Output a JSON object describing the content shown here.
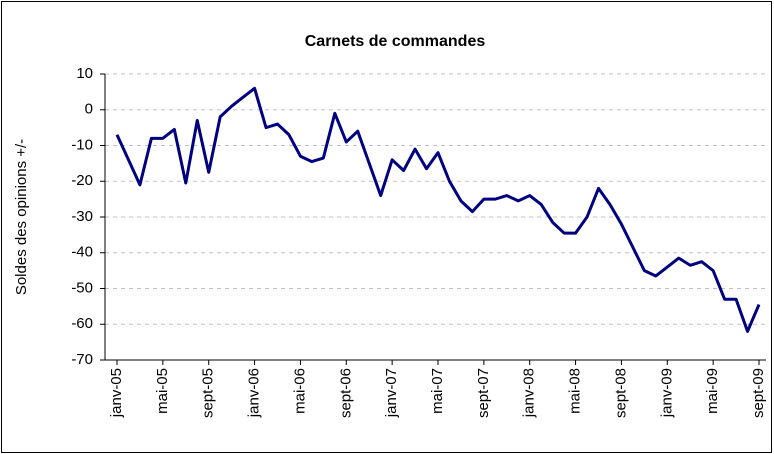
{
  "chart_data": {
    "type": "line",
    "title": "Carnets de commandes",
    "y_label": "Soldes des opinions +/-",
    "categories": [
      "janv-05",
      null,
      null,
      null,
      "mai-05",
      null,
      null,
      null,
      "sept-05",
      null,
      null,
      null,
      "janv-06",
      null,
      null,
      null,
      "mai-06",
      null,
      null,
      null,
      "sept-06",
      null,
      null,
      null,
      "janv-07",
      null,
      null,
      null,
      "mai-07",
      null,
      null,
      null,
      "sept-07",
      null,
      null,
      null,
      "janv-08",
      null,
      null,
      null,
      "mai-08",
      null,
      null,
      null,
      "sept-08",
      null,
      null,
      null,
      "janv-09",
      null,
      null,
      null,
      "mai-09",
      null,
      null,
      null,
      "sept-09"
    ],
    "series": [
      {
        "name": "Carnets de commandes",
        "color": "#000080",
        "values": [
          -7,
          -14,
          -21,
          -8,
          -8,
          -5.5,
          -20.5,
          -3,
          -17.5,
          -2,
          1,
          3.5,
          6,
          -5,
          -4,
          -7,
          -13,
          -14.5,
          -13.5,
          -1,
          -9,
          -6,
          -15,
          -24,
          -14,
          -17,
          -11,
          -16.5,
          -12,
          -20,
          -25.5,
          -28.5,
          -25,
          -25,
          -24,
          -25.5,
          -24,
          -26.5,
          -31.5,
          -34.5,
          -34.5,
          -30,
          -22,
          -26.5,
          -32,
          -38.5,
          -45,
          -46.5,
          -44,
          -41.5,
          -43.5,
          -42.5,
          -45,
          -53,
          -53,
          -62,
          -54.5
        ]
      }
    ],
    "ylim": [
      -70,
      10
    ],
    "yticks": [
      -70,
      -60,
      -50,
      -40,
      -30,
      -20,
      -10,
      0,
      10
    ],
    "grid": true
  }
}
